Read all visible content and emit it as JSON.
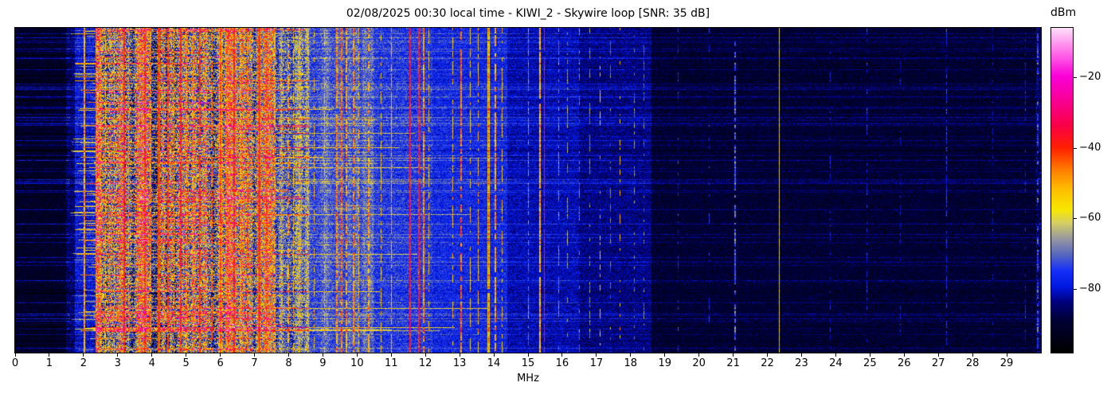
{
  "title": "02/08/2025 00:30 local time - KIWI_2 - Skywire loop [SNR: 35 dB]",
  "xlabel": "MHz",
  "colorbar": {
    "label": "dBm",
    "range_dbm": [
      -98,
      -6
    ],
    "ticks": [
      {
        "label": "−20",
        "value": -20
      },
      {
        "label": "−40",
        "value": -40
      },
      {
        "label": "−60",
        "value": -60
      },
      {
        "label": "−80",
        "value": -80
      }
    ]
  },
  "chart_data": {
    "type": "heatmap",
    "subtype": "radio-spectrogram-waterfall",
    "title": "02/08/2025 00:30 local time - KIWI_2 - Skywire loop [SNR: 35 dB]",
    "xlabel": "MHz",
    "x_range": [
      0,
      30
    ],
    "x_ticks": [
      0,
      1,
      2,
      3,
      4,
      5,
      6,
      7,
      8,
      9,
      10,
      11,
      12,
      13,
      14,
      15,
      16,
      17,
      18,
      19,
      20,
      21,
      22,
      23,
      24,
      25,
      26,
      27,
      28,
      29
    ],
    "y_axis": "time (no tick labels shown)",
    "intensity_unit": "dBm",
    "intensity_range_dbm": [
      -98,
      -6
    ],
    "intensity_scale_note": "intensity values below are 0..1, mapped linearly to -98..-6 dBm",
    "colormap_stops": [
      [
        0.0,
        "#000000"
      ],
      [
        0.1,
        "#000038"
      ],
      [
        0.155,
        "#000080"
      ],
      [
        0.2,
        "#0018e0"
      ],
      [
        0.25,
        "#1430f8"
      ],
      [
        0.3,
        "#5868c0"
      ],
      [
        0.35,
        "#9898a0"
      ],
      [
        0.4,
        "#d8d060"
      ],
      [
        0.44,
        "#f8e800"
      ],
      [
        0.5,
        "#ffc000"
      ],
      [
        0.56,
        "#ff8000"
      ],
      [
        0.63,
        "#ff2000"
      ],
      [
        0.7,
        "#fa0048"
      ],
      [
        0.77,
        "#f80090"
      ],
      [
        0.85,
        "#fa00d8"
      ],
      [
        0.92,
        "#ff68e8"
      ],
      [
        1.0,
        "#ffe0fa"
      ]
    ],
    "bands_format": [
      "f_start_mhz",
      "f_end_mhz",
      "base_intensity",
      "noise_amplitude"
    ],
    "bands": [
      [
        0.0,
        1.5,
        0.07,
        0.05
      ],
      [
        1.5,
        1.75,
        0.13,
        0.07
      ],
      [
        1.75,
        2.35,
        0.21,
        0.07
      ],
      [
        2.35,
        7.6,
        0.3,
        0.22
      ],
      [
        7.6,
        8.6,
        0.28,
        0.14
      ],
      [
        8.6,
        10.5,
        0.26,
        0.08
      ],
      [
        10.5,
        12.2,
        0.25,
        0.07
      ],
      [
        12.2,
        14.4,
        0.23,
        0.06
      ],
      [
        14.4,
        16.5,
        0.18,
        0.055
      ],
      [
        16.5,
        18.6,
        0.15,
        0.055
      ],
      [
        18.6,
        30.0,
        0.085,
        0.055
      ]
    ],
    "streaks_note": "horizontal time-row bursts mainly span 1.6-8.6 MHz; faint full-width rows elsewhere",
    "signals_format": [
      "freq_mhz",
      "peak_intensity_0_1",
      "width_px",
      "duty_cycle"
    ],
    "signals": [
      [
        2.03,
        0.5,
        2,
        1
      ],
      [
        2.5,
        0.46,
        1,
        0.8
      ],
      [
        2.65,
        0.45,
        1,
        0.7
      ],
      [
        2.9,
        0.48,
        1,
        0.7
      ],
      [
        3.2,
        0.62,
        2,
        0.9
      ],
      [
        3.33,
        0.5,
        1,
        0.8
      ],
      [
        3.6,
        0.55,
        1,
        0.7
      ],
      [
        3.8,
        0.6,
        2,
        0.85
      ],
      [
        3.95,
        0.52,
        2,
        0.8
      ],
      [
        4.2,
        0.66,
        3,
        1
      ],
      [
        4.47,
        0.58,
        2,
        0.8
      ],
      [
        4.65,
        0.5,
        1,
        0.7
      ],
      [
        4.85,
        0.62,
        2,
        0.9
      ],
      [
        5.0,
        0.52,
        2,
        0.8
      ],
      [
        5.2,
        0.48,
        1,
        0.6
      ],
      [
        5.4,
        0.6,
        2,
        0.8
      ],
      [
        5.6,
        0.5,
        1,
        0.7
      ],
      [
        5.75,
        0.55,
        2,
        0.7
      ],
      [
        6.0,
        0.57,
        4,
        0.9
      ],
      [
        6.2,
        0.5,
        2,
        0.8
      ],
      [
        6.4,
        0.62,
        2,
        0.8
      ],
      [
        6.6,
        0.5,
        2,
        0.7
      ],
      [
        6.8,
        0.55,
        2,
        0.7
      ],
      [
        7.15,
        0.67,
        3,
        1
      ],
      [
        7.35,
        0.55,
        2,
        0.8
      ],
      [
        7.6,
        0.5,
        2,
        0.7
      ],
      [
        7.8,
        0.48,
        1,
        0.7
      ],
      [
        8.0,
        0.5,
        2,
        0.6
      ],
      [
        8.15,
        0.46,
        1,
        0.6
      ],
      [
        8.3,
        0.48,
        1,
        0.6
      ],
      [
        8.75,
        0.47,
        1,
        0.5
      ],
      [
        9.05,
        0.46,
        1,
        0.5
      ],
      [
        9.4,
        0.52,
        2,
        0.8
      ],
      [
        9.55,
        0.55,
        2,
        0.8
      ],
      [
        9.7,
        0.5,
        2,
        0.7
      ],
      [
        9.9,
        0.52,
        2,
        0.7
      ],
      [
        10.05,
        0.48,
        1,
        0.6
      ],
      [
        10.35,
        0.5,
        2,
        0.6
      ],
      [
        10.7,
        0.45,
        1,
        0.5
      ],
      [
        11.0,
        0.48,
        1,
        0.7
      ],
      [
        11.55,
        0.64,
        2,
        1
      ],
      [
        11.8,
        0.62,
        2,
        0.9
      ],
      [
        11.95,
        0.52,
        2,
        0.8
      ],
      [
        12.1,
        0.46,
        1,
        0.5
      ],
      [
        12.8,
        0.46,
        1,
        0.5
      ],
      [
        13.05,
        0.55,
        2,
        0.7
      ],
      [
        13.3,
        0.45,
        1,
        0.5
      ],
      [
        13.55,
        0.48,
        1,
        0.6
      ],
      [
        13.85,
        0.56,
        3,
        0.95
      ],
      [
        14.05,
        0.5,
        2,
        0.7
      ],
      [
        14.25,
        0.46,
        1,
        0.5
      ],
      [
        15.0,
        0.3,
        1,
        0.6
      ],
      [
        15.35,
        0.48,
        2,
        0.9
      ],
      [
        15.48,
        0.65,
        1,
        0.85
      ],
      [
        15.9,
        0.3,
        1,
        0.5
      ],
      [
        16.15,
        0.32,
        1,
        0.5
      ],
      [
        16.5,
        0.28,
        1,
        0.4
      ],
      [
        16.8,
        0.3,
        1,
        0.5
      ],
      [
        17.1,
        0.45,
        1,
        0.35
      ],
      [
        17.4,
        0.28,
        1,
        0.4
      ],
      [
        17.7,
        0.45,
        1,
        0.35
      ],
      [
        18.1,
        0.3,
        1,
        0.4
      ],
      [
        18.4,
        0.28,
        1,
        0.4
      ],
      [
        19.4,
        0.2,
        1,
        0.4
      ],
      [
        20.3,
        0.2,
        1,
        0.3
      ],
      [
        21.05,
        0.26,
        2,
        0.7
      ],
      [
        22.35,
        0.38,
        1,
        1
      ],
      [
        23.85,
        0.18,
        1,
        0.3
      ],
      [
        24.9,
        0.2,
        1,
        0.4
      ],
      [
        25.9,
        0.16,
        1,
        0.3
      ],
      [
        27.25,
        0.22,
        1,
        0.6
      ],
      [
        28.6,
        0.16,
        1,
        0.3
      ],
      [
        29.55,
        0.18,
        1,
        0.4
      ],
      [
        29.9,
        0.24,
        2,
        0.5
      ]
    ],
    "legend_position": "colorbar-right"
  }
}
